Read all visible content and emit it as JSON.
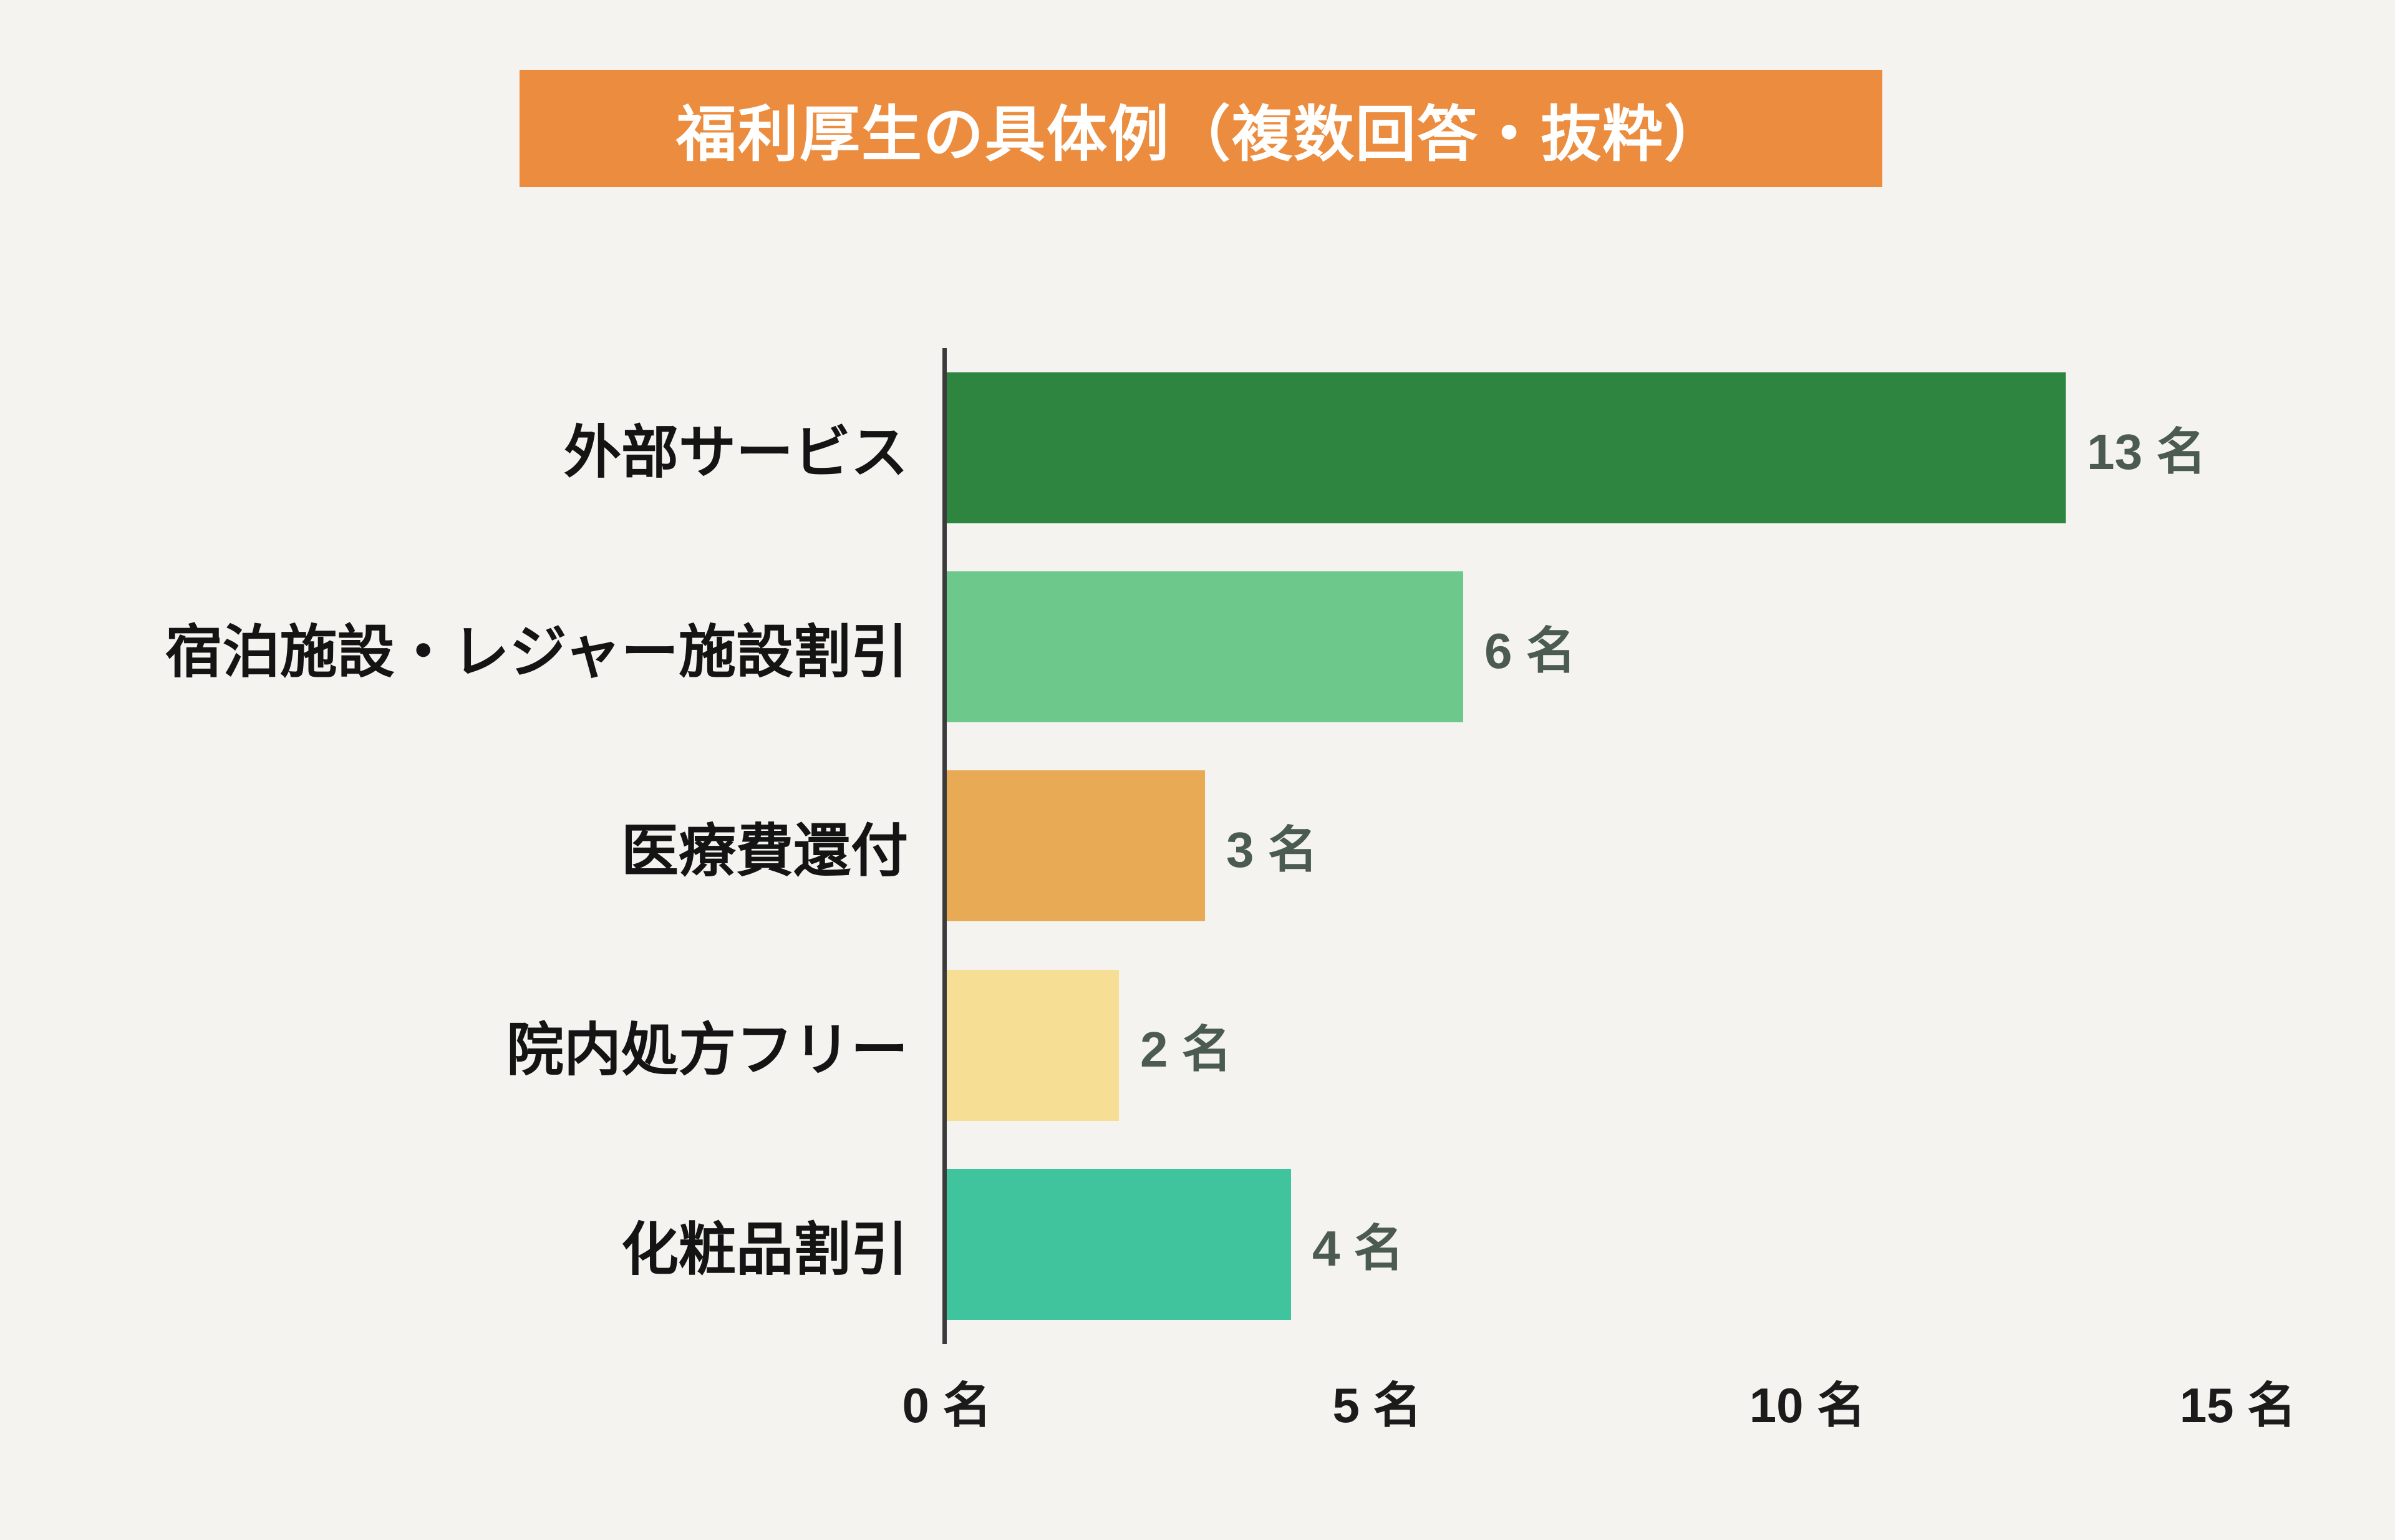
{
  "page": {
    "background_color": "#f4f3ef"
  },
  "header": {
    "title": "福利厚生の具体例（複数回答・抜粋）",
    "background_color": "#ec8c3e",
    "text_color": "#ffffff"
  },
  "chart_data": {
    "type": "bar",
    "orientation": "horizontal",
    "title": "福利厚生の具体例（複数回答・抜粋）",
    "categories": [
      "外部サービス",
      "宿泊施設・レジャー施設割引",
      "医療費還付",
      "院内処方フリー",
      "化粧品割引"
    ],
    "values": [
      13,
      6,
      3,
      2,
      4
    ],
    "value_labels": [
      "13 名",
      "6 名",
      "3 名",
      "2 名",
      "4 名"
    ],
    "bar_colors": [
      "#2e8540",
      "#6cc98b",
      "#e9aa55",
      "#f6de94",
      "#40c49e"
    ],
    "xlabel": "",
    "ylabel": "",
    "xlim": [
      0,
      15
    ],
    "x_ticks": [
      {
        "value": 0,
        "label": "0 名"
      },
      {
        "value": 5,
        "label": "5 名"
      },
      {
        "value": 10,
        "label": "10 名"
      },
      {
        "value": 15,
        "label": "15 名"
      }
    ],
    "value_label_color": "#4b5b51",
    "axis_color": "#3b3b3b",
    "grid": false,
    "legend": false
  }
}
